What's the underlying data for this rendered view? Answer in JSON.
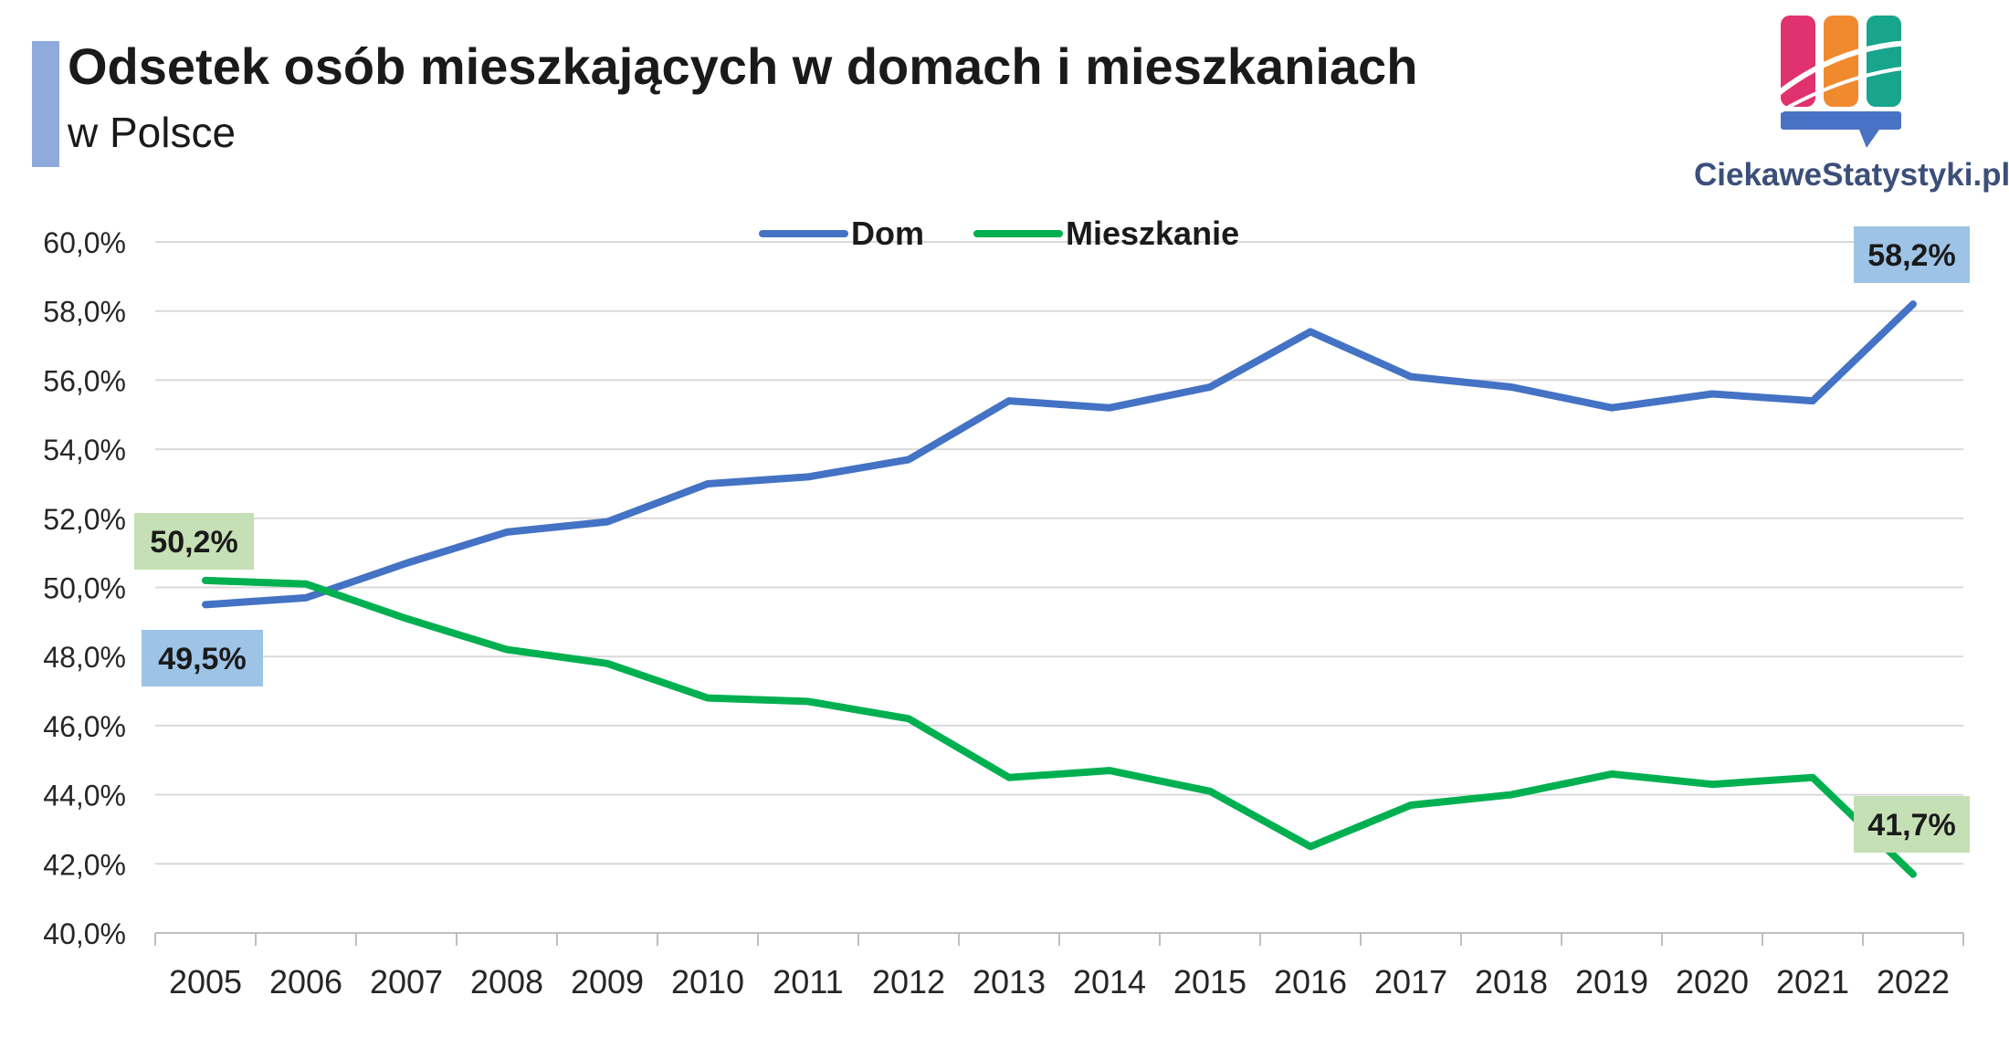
{
  "header": {
    "title": "Odsetek osób mieszkających w domach i mieszkaniach",
    "subtitle": "w Polsce"
  },
  "logo": {
    "text": "CiekaweStatystyki.pl",
    "colors": [
      "#e0326e",
      "#f08a2e",
      "#17a58c",
      "#4a72c4"
    ]
  },
  "chart_data": {
    "type": "line",
    "title": "Odsetek osób mieszkających w domach i mieszkaniach",
    "subtitle": "w Polsce",
    "x": [
      "2005",
      "2006",
      "2007",
      "2008",
      "2009",
      "2010",
      "2011",
      "2012",
      "2013",
      "2014",
      "2015",
      "2016",
      "2017",
      "2018",
      "2019",
      "2020",
      "2021",
      "2022"
    ],
    "ylim": [
      40,
      60
    ],
    "yticks": [
      40,
      42,
      44,
      46,
      48,
      50,
      52,
      54,
      56,
      58,
      60
    ],
    "ytick_labels": [
      "40,0%",
      "42,0%",
      "44,0%",
      "46,0%",
      "48,0%",
      "50,0%",
      "52,0%",
      "54,0%",
      "56,0%",
      "58,0%",
      "60,0%"
    ],
    "grid": true,
    "legend": "top-center",
    "series": [
      {
        "name": "Dom",
        "color": "#4472c4",
        "values": [
          49.5,
          49.7,
          50.7,
          51.6,
          51.9,
          53.0,
          53.2,
          53.7,
          55.4,
          55.2,
          55.8,
          57.4,
          56.1,
          55.8,
          55.2,
          55.6,
          55.4,
          58.2
        ]
      },
      {
        "name": "Mieszkanie",
        "color": "#00b050",
        "values": [
          50.2,
          50.1,
          49.1,
          48.2,
          47.8,
          46.8,
          46.7,
          46.2,
          44.5,
          44.7,
          44.1,
          42.5,
          43.7,
          44.0,
          44.6,
          44.3,
          44.5,
          41.7
        ]
      }
    ],
    "annotations": [
      {
        "text": "49,5%",
        "series": "Dom",
        "index": 0,
        "bg": "#9dc3e6"
      },
      {
        "text": "58,2%",
        "series": "Dom",
        "index": 17,
        "bg": "#9dc3e6"
      },
      {
        "text": "50,2%",
        "series": "Mieszkanie",
        "index": 0,
        "bg": "#c5e0b4"
      },
      {
        "text": "41,7%",
        "series": "Mieszkanie",
        "index": 17,
        "bg": "#c5e0b4"
      }
    ]
  }
}
